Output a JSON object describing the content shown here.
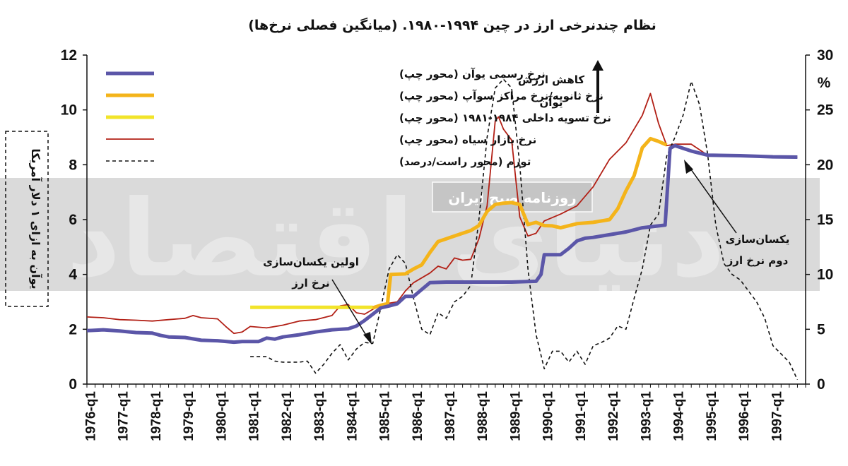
{
  "chart_data": {
    "type": "line",
    "title": "نظام چندنرخی ارز در چین ۱۹۹۴-۱۹۸۰. (میانگین فصلی نرخ‌ها)",
    "ylabel_left": "یوآن به ازای ۱ دلار آمریکا",
    "ylabel_right": "%",
    "y_left": {
      "min": 0,
      "max": 12,
      "ticks": [
        "0",
        "2",
        "4",
        "6",
        "8",
        "10",
        "12"
      ]
    },
    "y_right": {
      "min": 0,
      "max": 30,
      "ticks": [
        "0",
        "5",
        "10",
        "15",
        "20",
        "25",
        "30"
      ]
    },
    "x_range": [
      1976.0,
      1998.0
    ],
    "x_tick_labels": [
      "1976-q1",
      "1977-q1",
      "1978-q1",
      "1979-q1",
      "1980-q1",
      "1981-q1",
      "1982-q1",
      "1983-q1",
      "1984-q1",
      "1985-q1",
      "1986-q1",
      "1987-q1",
      "1988-q1",
      "1989-q1",
      "1990-q1",
      "1991-q1",
      "1992-q1",
      "1993-q1",
      "1994-q1",
      "1995-q1",
      "1996-q1",
      "1997-q1"
    ],
    "legend_position": "top-left",
    "grid": false,
    "series": [
      {
        "name": "نرخ رسمی یوآن (محور چپ)",
        "axis": "left",
        "color": "#5b56a8",
        "style": "thick",
        "points": [
          [
            1976.0,
            1.95
          ],
          [
            1976.5,
            1.98
          ],
          [
            1977.0,
            1.94
          ],
          [
            1977.5,
            1.88
          ],
          [
            1978.0,
            1.86
          ],
          [
            1978.25,
            1.78
          ],
          [
            1978.5,
            1.72
          ],
          [
            1979.0,
            1.7
          ],
          [
            1979.5,
            1.6
          ],
          [
            1980.0,
            1.58
          ],
          [
            1980.5,
            1.53
          ],
          [
            1980.75,
            1.55
          ],
          [
            1981.0,
            1.55
          ],
          [
            1981.25,
            1.55
          ],
          [
            1981.5,
            1.68
          ],
          [
            1981.75,
            1.64
          ],
          [
            1982.0,
            1.72
          ],
          [
            1982.5,
            1.8
          ],
          [
            1983.0,
            1.9
          ],
          [
            1983.5,
            1.98
          ],
          [
            1984.0,
            2.02
          ],
          [
            1984.25,
            2.12
          ],
          [
            1984.5,
            2.32
          ],
          [
            1984.75,
            2.55
          ],
          [
            1985.0,
            2.78
          ],
          [
            1985.25,
            2.85
          ],
          [
            1985.5,
            2.93
          ],
          [
            1985.75,
            3.2
          ],
          [
            1986.0,
            3.2
          ],
          [
            1986.25,
            3.45
          ],
          [
            1986.5,
            3.7
          ],
          [
            1987.0,
            3.72
          ],
          [
            1988.0,
            3.72
          ],
          [
            1989.0,
            3.72
          ],
          [
            1989.75,
            3.75
          ],
          [
            1989.9,
            4.0
          ],
          [
            1990.0,
            4.72
          ],
          [
            1990.5,
            4.72
          ],
          [
            1990.75,
            4.95
          ],
          [
            1991.0,
            5.22
          ],
          [
            1991.25,
            5.32
          ],
          [
            1991.5,
            5.35
          ],
          [
            1992.0,
            5.45
          ],
          [
            1992.5,
            5.55
          ],
          [
            1993.0,
            5.7
          ],
          [
            1993.5,
            5.77
          ],
          [
            1993.7,
            5.8
          ],
          [
            1993.85,
            8.6
          ],
          [
            1994.0,
            8.7
          ],
          [
            1994.5,
            8.5
          ],
          [
            1995.0,
            8.35
          ],
          [
            1996.0,
            8.33
          ],
          [
            1997.0,
            8.29
          ],
          [
            1997.75,
            8.28
          ]
        ]
      },
      {
        "name": "نرخ ثانویه/نرخ مراکز سوآپ (محور چپ)",
        "axis": "left",
        "color": "#f4b41a",
        "style": "thick",
        "points": [
          [
            1984.75,
            2.78
          ],
          [
            1985.0,
            2.88
          ],
          [
            1985.2,
            2.93
          ],
          [
            1985.3,
            4.0
          ],
          [
            1985.75,
            4.02
          ],
          [
            1986.0,
            4.2
          ],
          [
            1986.25,
            4.35
          ],
          [
            1986.5,
            4.8
          ],
          [
            1986.75,
            5.2
          ],
          [
            1987.0,
            5.3
          ],
          [
            1987.5,
            5.5
          ],
          [
            1987.75,
            5.6
          ],
          [
            1988.0,
            5.78
          ],
          [
            1988.25,
            6.3
          ],
          [
            1988.5,
            6.55
          ],
          [
            1988.75,
            6.6
          ],
          [
            1989.0,
            6.62
          ],
          [
            1989.25,
            6.55
          ],
          [
            1989.5,
            5.82
          ],
          [
            1989.75,
            5.9
          ],
          [
            1990.0,
            5.78
          ],
          [
            1990.25,
            5.77
          ],
          [
            1990.5,
            5.7
          ],
          [
            1991.0,
            5.85
          ],
          [
            1991.5,
            5.9
          ],
          [
            1992.0,
            6.0
          ],
          [
            1992.25,
            6.4
          ],
          [
            1992.5,
            7.05
          ],
          [
            1992.75,
            7.6
          ],
          [
            1993.0,
            8.62
          ],
          [
            1993.25,
            8.95
          ],
          [
            1993.5,
            8.85
          ],
          [
            1993.75,
            8.72
          ]
        ]
      },
      {
        "name": "نرخ تسویه داخلی ۱۹۸۴-۱۹۸۱ (محور چپ)",
        "axis": "left",
        "color": "#f2e42a",
        "style": "thick",
        "points": [
          [
            1981.0,
            2.8
          ],
          [
            1984.75,
            2.8
          ]
        ]
      },
      {
        "name": "نرخ بازار سیاه (محور چپ)",
        "axis": "left",
        "color": "#b22016",
        "style": "thin",
        "points": [
          [
            1976.0,
            2.45
          ],
          [
            1976.5,
            2.42
          ],
          [
            1977.0,
            2.35
          ],
          [
            1977.5,
            2.33
          ],
          [
            1978.0,
            2.3
          ],
          [
            1978.5,
            2.35
          ],
          [
            1979.0,
            2.4
          ],
          [
            1979.25,
            2.5
          ],
          [
            1979.5,
            2.42
          ],
          [
            1980.0,
            2.38
          ],
          [
            1980.25,
            2.1
          ],
          [
            1980.5,
            1.85
          ],
          [
            1980.75,
            1.9
          ],
          [
            1981.0,
            2.1
          ],
          [
            1981.5,
            2.05
          ],
          [
            1982.0,
            2.15
          ],
          [
            1982.5,
            2.3
          ],
          [
            1983.0,
            2.35
          ],
          [
            1983.5,
            2.5
          ],
          [
            1983.75,
            2.85
          ],
          [
            1984.0,
            2.9
          ],
          [
            1984.25,
            2.6
          ],
          [
            1984.5,
            2.55
          ],
          [
            1985.0,
            2.9
          ],
          [
            1985.5,
            3.0
          ],
          [
            1985.75,
            3.4
          ],
          [
            1986.0,
            3.7
          ],
          [
            1986.5,
            4.05
          ],
          [
            1986.75,
            4.3
          ],
          [
            1987.0,
            4.2
          ],
          [
            1987.25,
            4.6
          ],
          [
            1987.5,
            4.52
          ],
          [
            1987.75,
            4.55
          ],
          [
            1988.0,
            5.3
          ],
          [
            1988.25,
            6.5
          ],
          [
            1988.5,
            9.6
          ],
          [
            1988.6,
            9.75
          ],
          [
            1988.75,
            9.3
          ],
          [
            1989.0,
            8.9
          ],
          [
            1989.25,
            6.1
          ],
          [
            1989.5,
            5.4
          ],
          [
            1989.75,
            5.5
          ],
          [
            1990.0,
            5.95
          ],
          [
            1990.5,
            6.2
          ],
          [
            1991.0,
            6.5
          ],
          [
            1991.5,
            7.2
          ],
          [
            1992.0,
            8.2
          ],
          [
            1992.5,
            8.8
          ],
          [
            1993.0,
            9.8
          ],
          [
            1993.25,
            10.6
          ],
          [
            1993.5,
            9.5
          ],
          [
            1993.75,
            8.7
          ],
          [
            1994.0,
            8.75
          ],
          [
            1994.5,
            8.75
          ],
          [
            1995.0,
            8.35
          ],
          [
            1996.0,
            8.35
          ],
          [
            1997.0,
            8.3
          ],
          [
            1997.75,
            8.27
          ]
        ]
      },
      {
        "name": "تورم (محور راست/درصد)",
        "axis": "right",
        "color": "#111111",
        "style": "dashed",
        "points": [
          [
            1981.0,
            2.5
          ],
          [
            1981.5,
            2.5
          ],
          [
            1981.75,
            2.1
          ],
          [
            1982.0,
            2.0
          ],
          [
            1982.5,
            2.0
          ],
          [
            1982.75,
            2.1
          ],
          [
            1983.0,
            1.0
          ],
          [
            1983.25,
            1.8
          ],
          [
            1983.5,
            2.8
          ],
          [
            1983.75,
            3.6
          ],
          [
            1984.0,
            2.2
          ],
          [
            1984.25,
            3.2
          ],
          [
            1984.5,
            3.8
          ],
          [
            1984.75,
            3.7
          ],
          [
            1985.0,
            7.0
          ],
          [
            1985.25,
            10.5
          ],
          [
            1985.5,
            11.8
          ],
          [
            1985.75,
            11.0
          ],
          [
            1986.0,
            7.8
          ],
          [
            1986.25,
            5.0
          ],
          [
            1986.5,
            4.5
          ],
          [
            1986.75,
            6.5
          ],
          [
            1987.0,
            6.0
          ],
          [
            1987.25,
            7.5
          ],
          [
            1987.5,
            8.0
          ],
          [
            1987.75,
            9.0
          ],
          [
            1988.0,
            15.0
          ],
          [
            1988.25,
            22.5
          ],
          [
            1988.5,
            27.0
          ],
          [
            1988.75,
            27.8
          ],
          [
            1989.0,
            27.0
          ],
          [
            1989.25,
            20.0
          ],
          [
            1989.5,
            10.5
          ],
          [
            1989.75,
            4.5
          ],
          [
            1990.0,
            1.4
          ],
          [
            1990.25,
            3.0
          ],
          [
            1990.5,
            3.0
          ],
          [
            1990.75,
            2.0
          ],
          [
            1991.0,
            3.0
          ],
          [
            1991.25,
            1.8
          ],
          [
            1991.5,
            3.5
          ],
          [
            1991.75,
            3.8
          ],
          [
            1992.0,
            4.2
          ],
          [
            1992.25,
            5.3
          ],
          [
            1992.5,
            5.0
          ],
          [
            1992.75,
            7.8
          ],
          [
            1993.0,
            10.5
          ],
          [
            1993.25,
            14.5
          ],
          [
            1993.5,
            15.5
          ],
          [
            1993.75,
            20.8
          ],
          [
            1994.0,
            22.5
          ],
          [
            1994.25,
            24.5
          ],
          [
            1994.5,
            27.6
          ],
          [
            1994.75,
            25.5
          ],
          [
            1995.0,
            21.0
          ],
          [
            1995.25,
            14.5
          ],
          [
            1995.5,
            11.0
          ],
          [
            1995.75,
            10.0
          ],
          [
            1996.0,
            9.5
          ],
          [
            1996.5,
            7.5
          ],
          [
            1996.75,
            6.0
          ],
          [
            1997.0,
            3.5
          ],
          [
            1997.5,
            2.0
          ],
          [
            1997.75,
            0.4
          ]
        ]
      }
    ],
    "annotations": {
      "devaluation": [
        "کاهش ارزش",
        "یوآن"
      ],
      "first_unification": [
        "اولین یکسان‌سازی",
        "نرخ ارز"
      ],
      "second_unification": [
        "یکسان‌سازی",
        "دوم نرخ ارز"
      ]
    },
    "watermark": {
      "source": "روزنامه صبح ایران",
      "logo": "دنیای اقتصاد"
    }
  }
}
